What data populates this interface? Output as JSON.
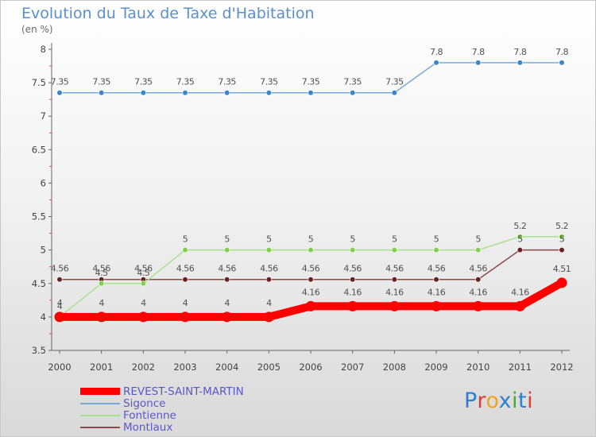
{
  "header": {
    "title": "Evolution du Taux de Taxe d'Habitation",
    "subtitle": "(en %)"
  },
  "logo": {
    "text": "Proxiti",
    "letter_colors": [
      "#2c7fd0",
      "#e23b30",
      "#f2a21c",
      "#2c7fd0",
      "#4aa83c",
      "#2c7fd0",
      "#e23b30"
    ]
  },
  "chart_data": {
    "type": "line",
    "title": "Evolution du Taux de Taxe d'Habitation",
    "ylabel": "(en %)",
    "xlabel": "",
    "x": [
      "2000",
      "2001",
      "2002",
      "2003",
      "2004",
      "2005",
      "2006",
      "2007",
      "2008",
      "2009",
      "2010",
      "2011",
      "2012"
    ],
    "ylim": [
      3.5,
      8
    ],
    "yticks": [
      "3.5",
      "4",
      "4.5",
      "5",
      "5.5",
      "6",
      "6.5",
      "7",
      "7.5",
      "8"
    ],
    "grid": false,
    "legend_position": "bottom-left",
    "series": [
      {
        "name": "REVEST-SAINT-MARTIN",
        "color": "#ff0000",
        "values": [
          4,
          4,
          4,
          4,
          4,
          4,
          4.16,
          4.16,
          4.16,
          4.16,
          4.16,
          4.16,
          4.51
        ],
        "labels": [
          "4",
          "4",
          "4",
          "4",
          "4",
          "4",
          "4.16",
          "4.16",
          "4.16",
          "4.16",
          "4.16",
          "4.16",
          "4.51"
        ]
      },
      {
        "name": "Sigonce",
        "color": "#7aaad6",
        "marker_color": "#3a86cc",
        "values": [
          7.35,
          7.35,
          7.35,
          7.35,
          7.35,
          7.35,
          7.35,
          7.35,
          7.35,
          7.8,
          7.8,
          7.8,
          7.8
        ],
        "labels": [
          "7.35",
          "7.35",
          "7.35",
          "7.35",
          "7.35",
          "7.35",
          "7.35",
          "7.35",
          "7.35",
          "7.8",
          "7.8",
          "7.8",
          "7.8"
        ]
      },
      {
        "name": "Fontienne",
        "color": "#a8e08c",
        "marker_color": "#7fd04a",
        "values": [
          4,
          4.5,
          4.5,
          5,
          5,
          5,
          5,
          5,
          5,
          5,
          5,
          5.2,
          5.2
        ],
        "labels": [
          "4",
          "4.5",
          "4.5",
          "5",
          "5",
          "5",
          "5",
          "5",
          "5",
          "5",
          "5",
          "5.2",
          "5.2"
        ]
      },
      {
        "name": "Montlaux",
        "color": "#8a4a4a",
        "marker_color": "#6b1f1f",
        "values": [
          4.56,
          4.56,
          4.56,
          4.56,
          4.56,
          4.56,
          4.56,
          4.56,
          4.56,
          4.56,
          4.56,
          5,
          5
        ],
        "labels": [
          "4.56",
          "4.56",
          "4.56",
          "4.56",
          "4.56",
          "4.56",
          "4.56",
          "4.56",
          "4.56",
          "4.56",
          "4.56",
          "5",
          "5"
        ]
      }
    ]
  }
}
